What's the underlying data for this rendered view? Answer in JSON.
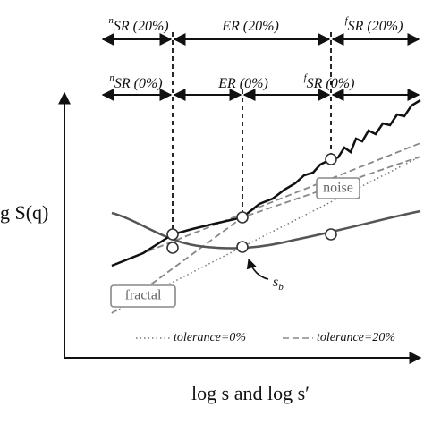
{
  "ranges_20": [
    {
      "sup": "n",
      "text": "SR (20%)"
    },
    {
      "text": "ER (20%)"
    },
    {
      "sup": "f",
      "text": "SR (20%)"
    }
  ],
  "ranges_0": [
    {
      "sup": "n",
      "text": "SR (0%)"
    },
    {
      "text": "ER (0%)"
    },
    {
      "sup": "f",
      "text": "SR (0%)"
    }
  ],
  "noise_label": "noise",
  "fractal_label": "fractal",
  "breakpoint_label": {
    "text": "s",
    "sub": "b"
  },
  "legend": [
    "tolerance=0%",
    "tolerance=20%"
  ],
  "y_label": "g S(q)",
  "x_label": "log s and log s′"
}
